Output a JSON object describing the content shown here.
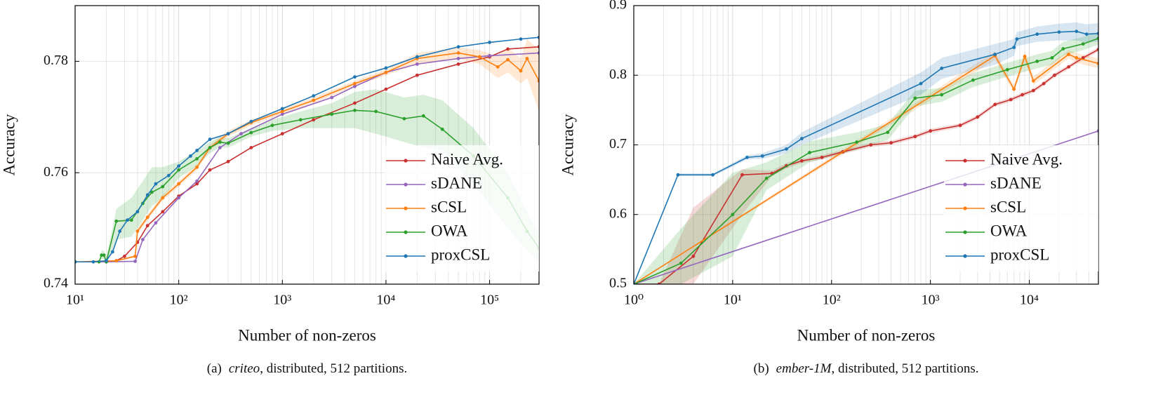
{
  "chart_data": [
    {
      "type": "line",
      "log_x": true,
      "grid": true,
      "minor_grid": true,
      "legend": "lower right",
      "x_label": "Number of non-zeros",
      "y_label": "Accuracy",
      "caption": {
        "label": "(a)",
        "dataset": "criteo",
        "text": ", distributed, 512 partitions."
      },
      "xlim": [
        10,
        300000
      ],
      "ylim": [
        0.74,
        0.79
      ],
      "xticks": [
        {
          "value": 10,
          "label": "10¹"
        },
        {
          "value": 100,
          "label": "10²"
        },
        {
          "value": 1000,
          "label": "10³"
        },
        {
          "value": 10000,
          "label": "10⁴"
        },
        {
          "value": 100000,
          "label": "10⁵"
        }
      ],
      "yticks": [
        0.74,
        0.76,
        0.78
      ],
      "series": [
        {
          "name": "Naive Avg.",
          "color": "#c8312f",
          "x": [
            10,
            20,
            25,
            30,
            40,
            50,
            70,
            100,
            150,
            200,
            300,
            500,
            1000,
            2000,
            5000,
            10000,
            20000,
            50000,
            100000,
            150000,
            300000
          ],
          "values": [
            0.744,
            0.744,
            0.7442,
            0.745,
            0.7475,
            0.7505,
            0.753,
            0.7558,
            0.758,
            0.7605,
            0.762,
            0.7645,
            0.767,
            0.7695,
            0.7725,
            0.775,
            0.7775,
            0.7795,
            0.7808,
            0.7822,
            0.7826
          ]
        },
        {
          "name": "sDANE",
          "color": "#9467bd",
          "x": [
            10,
            20,
            38,
            45,
            60,
            100,
            150,
            250,
            400,
            1000,
            3000,
            5000,
            10000,
            20000,
            50000,
            100000,
            300000
          ],
          "values": [
            0.744,
            0.744,
            0.7441,
            0.748,
            0.751,
            0.7555,
            0.7585,
            0.7645,
            0.767,
            0.7705,
            0.7735,
            0.7755,
            0.778,
            0.7795,
            0.7805,
            0.781,
            0.7815
          ]
        },
        {
          "name": "sCSL",
          "color": "#ff7f0e",
          "x": [
            10,
            25,
            38,
            40,
            50,
            70,
            100,
            150,
            200,
            300,
            500,
            1000,
            2000,
            5000,
            10000,
            20000,
            50000,
            80000,
            120000,
            150000,
            200000,
            230000,
            300000
          ],
          "values": [
            0.744,
            0.7442,
            0.745,
            0.7495,
            0.752,
            0.7555,
            0.758,
            0.761,
            0.7645,
            0.767,
            0.769,
            0.771,
            0.773,
            0.776,
            0.778,
            0.7805,
            0.7815,
            0.7808,
            0.779,
            0.7803,
            0.7783,
            0.7805,
            0.7765
          ],
          "lower": [
            0.744,
            0.7441,
            0.7448,
            0.749,
            0.7515,
            0.755,
            0.7575,
            0.7605,
            0.764,
            0.7665,
            0.7685,
            0.7705,
            0.7725,
            0.7755,
            0.7775,
            0.7795,
            0.7805,
            0.7795,
            0.777,
            0.778,
            0.776,
            0.777,
            0.771
          ],
          "upper": [
            0.744,
            0.7443,
            0.7452,
            0.75,
            0.7525,
            0.756,
            0.7585,
            0.7615,
            0.765,
            0.7675,
            0.7695,
            0.7715,
            0.7735,
            0.7765,
            0.7785,
            0.7815,
            0.7825,
            0.782,
            0.781,
            0.7825,
            0.7805,
            0.784,
            0.782
          ]
        },
        {
          "name": "OWA",
          "color": "#2ca02c",
          "x": [
            10,
            17,
            18,
            19,
            20,
            25,
            35,
            45,
            55,
            70,
            100,
            150,
            200,
            250,
            300,
            500,
            800,
            1500,
            3000,
            5000,
            8000,
            15000,
            23000,
            35000,
            70000,
            150000,
            230000,
            300000
          ],
          "values": [
            0.744,
            0.744,
            0.7452,
            0.7452,
            0.744,
            0.7513,
            0.7515,
            0.7545,
            0.7565,
            0.7575,
            0.7605,
            0.7625,
            0.7645,
            0.7655,
            0.7653,
            0.7672,
            0.7685,
            0.7695,
            0.7705,
            0.7712,
            0.771,
            0.7697,
            0.7702,
            0.7678,
            0.763,
            0.7555,
            0.7495,
            0.7465
          ],
          "lower": [
            0.744,
            0.744,
            0.7445,
            0.7445,
            0.7435,
            0.748,
            0.7485,
            0.7515,
            0.754,
            0.7555,
            0.759,
            0.7612,
            0.7635,
            0.7645,
            0.7645,
            0.7665,
            0.7675,
            0.768,
            0.768,
            0.768,
            0.767,
            0.7655,
            0.7645,
            0.764,
            0.758,
            0.75,
            0.746,
            0.744
          ],
          "upper": [
            0.744,
            0.744,
            0.746,
            0.746,
            0.7448,
            0.7535,
            0.7555,
            0.7585,
            0.761,
            0.761,
            0.762,
            0.764,
            0.7655,
            0.7665,
            0.7662,
            0.768,
            0.7695,
            0.771,
            0.7725,
            0.7745,
            0.775,
            0.7735,
            0.774,
            0.773,
            0.768,
            0.76,
            0.753,
            0.749
          ]
        },
        {
          "name": "proxCSL",
          "color": "#1f77b4",
          "x": [
            10,
            15,
            20,
            23,
            27,
            32,
            40,
            50,
            60,
            80,
            100,
            130,
            150,
            200,
            300,
            500,
            1000,
            2000,
            5000,
            10000,
            20000,
            50000,
            100000,
            200000,
            300000
          ],
          "values": [
            0.744,
            0.744,
            0.7442,
            0.7458,
            0.7495,
            0.7515,
            0.753,
            0.756,
            0.758,
            0.7595,
            0.7612,
            0.763,
            0.764,
            0.766,
            0.767,
            0.7692,
            0.7715,
            0.7738,
            0.7772,
            0.7788,
            0.7808,
            0.7826,
            0.7834,
            0.784,
            0.7843
          ]
        }
      ]
    },
    {
      "type": "line",
      "log_x": true,
      "grid": true,
      "minor_grid": true,
      "legend": "lower right",
      "x_label": "Number of non-zeros",
      "y_label": "Accuracy",
      "caption": {
        "label": "(b)",
        "dataset": "ember-1M",
        "text": ", distributed, 512 partitions."
      },
      "xlim": [
        1,
        50000
      ],
      "ylim": [
        0.5,
        0.9
      ],
      "xticks": [
        {
          "value": 1,
          "label": "10⁰"
        },
        {
          "value": 10,
          "label": "10¹"
        },
        {
          "value": 100,
          "label": "10²"
        },
        {
          "value": 1000,
          "label": "10³"
        },
        {
          "value": 10000,
          "label": "10⁴"
        }
      ],
      "yticks": [
        0.5,
        0.6,
        0.7,
        0.8,
        0.9
      ],
      "series": [
        {
          "name": "Naive Avg.",
          "color": "#c8312f",
          "x": [
            1,
            1.8,
            4,
            12.5,
            25,
            35,
            50,
            80,
            130,
            250,
            400,
            700,
            1000,
            2000,
            3000,
            4500,
            6500,
            8500,
            11000,
            14000,
            18000,
            25000,
            35000,
            50000
          ],
          "values": [
            0.5,
            0.5,
            0.54,
            0.657,
            0.659,
            0.67,
            0.677,
            0.682,
            0.69,
            0.7,
            0.703,
            0.712,
            0.72,
            0.728,
            0.74,
            0.758,
            0.765,
            0.772,
            0.778,
            0.788,
            0.8,
            0.812,
            0.825,
            0.837
          ],
          "lower": [
            0.5,
            0.5,
            0.5,
            0.6,
            0.655,
            0.666,
            0.674,
            0.679,
            0.687,
            0.697,
            0.7,
            0.709,
            0.717,
            0.725,
            0.737,
            0.755,
            0.762,
            0.769,
            0.775,
            0.785,
            0.797,
            0.809,
            0.822,
            0.834
          ],
          "upper": [
            0.5,
            0.5,
            0.61,
            0.665,
            0.663,
            0.674,
            0.68,
            0.685,
            0.693,
            0.703,
            0.706,
            0.715,
            0.723,
            0.731,
            0.743,
            0.761,
            0.768,
            0.775,
            0.781,
            0.791,
            0.803,
            0.815,
            0.828,
            0.84
          ]
        },
        {
          "name": "sDANE",
          "color": "#9467bd",
          "x": [
            1,
            50000
          ],
          "values": [
            0.5,
            0.72
          ]
        },
        {
          "name": "sCSL",
          "color": "#ff7f0e",
          "x": [
            1,
            4500,
            7000,
            9000,
            11000,
            25000,
            30000,
            50000
          ],
          "values": [
            0.5,
            0.828,
            0.78,
            0.827,
            0.792,
            0.83,
            0.825,
            0.817
          ],
          "lower": [
            0.5,
            0.822,
            0.775,
            0.82,
            0.786,
            0.824,
            0.818,
            0.81
          ],
          "upper": [
            0.5,
            0.834,
            0.785,
            0.834,
            0.798,
            0.836,
            0.832,
            0.824
          ]
        },
        {
          "name": "OWA",
          "color": "#2ca02c",
          "x": [
            1,
            3,
            10,
            22,
            60,
            180,
            370,
            700,
            1300,
            2700,
            6000,
            12000,
            17000,
            22000,
            35000,
            50000
          ],
          "values": [
            0.5,
            0.53,
            0.6,
            0.652,
            0.689,
            0.704,
            0.718,
            0.767,
            0.772,
            0.793,
            0.808,
            0.82,
            0.825,
            0.838,
            0.845,
            0.853
          ],
          "lower": [
            0.5,
            0.5,
            0.54,
            0.635,
            0.675,
            0.693,
            0.707,
            0.755,
            0.762,
            0.783,
            0.798,
            0.81,
            0.815,
            0.828,
            0.836,
            0.844
          ],
          "upper": [
            0.5,
            0.58,
            0.66,
            0.675,
            0.705,
            0.718,
            0.73,
            0.778,
            0.782,
            0.803,
            0.818,
            0.83,
            0.835,
            0.848,
            0.855,
            0.862
          ]
        },
        {
          "name": "proxCSL",
          "color": "#1f77b4",
          "x": [
            1,
            2.8,
            6.3,
            14,
            20,
            35,
            50,
            800,
            1300,
            4500,
            7000,
            7500,
            12000,
            20000,
            30000,
            38000,
            50000
          ],
          "values": [
            0.5,
            0.657,
            0.657,
            0.682,
            0.684,
            0.694,
            0.709,
            0.788,
            0.81,
            0.83,
            0.84,
            0.852,
            0.859,
            0.862,
            0.863,
            0.859,
            0.86
          ],
          "lower": [
            0.5,
            0.655,
            0.655,
            0.679,
            0.68,
            0.688,
            0.7,
            0.772,
            0.795,
            0.815,
            0.828,
            0.842,
            0.848,
            0.85,
            0.85,
            0.847,
            0.848
          ],
          "upper": [
            0.5,
            0.659,
            0.659,
            0.685,
            0.688,
            0.7,
            0.718,
            0.804,
            0.825,
            0.845,
            0.852,
            0.862,
            0.87,
            0.874,
            0.876,
            0.873,
            0.875
          ]
        }
      ]
    }
  ]
}
